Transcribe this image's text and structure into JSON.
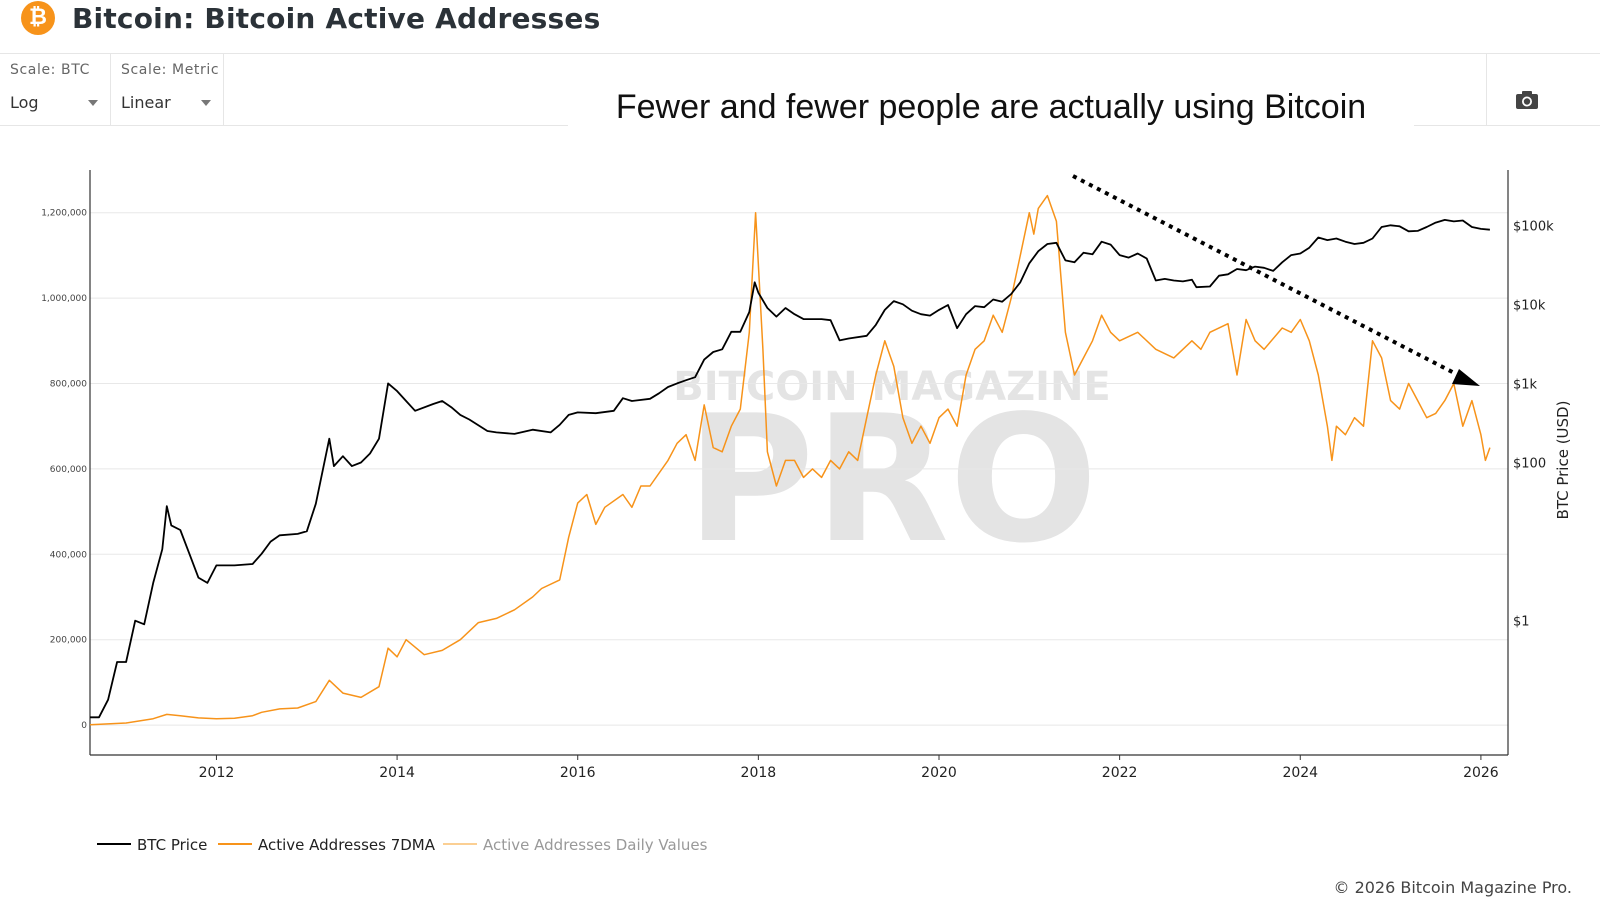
{
  "header": {
    "logo_glyph": "₿",
    "title": "Bitcoin: Bitcoin Active Addresses"
  },
  "controls": {
    "scale_btc_label": "Scale: BTC",
    "scale_btc_value": "Log",
    "scale_metric_label": "Scale: Metric",
    "scale_metric_value": "Linear",
    "screenshot_icon": "camera-icon"
  },
  "annotation": "Fewer and fewer people are actually using Bitcoin",
  "watermark": {
    "top": "BITCOIN MAGAZINE",
    "main": "PRO"
  },
  "copyright": "© 2026 Bitcoin Magazine Pro.",
  "colors": {
    "btc_price": "#000000",
    "active_7dma": "#f7931a",
    "active_daily": "#fbcf93",
    "arrow": "#000000"
  },
  "chart_data": {
    "type": "line",
    "title": "Bitcoin: Bitcoin Active Addresses",
    "x_ticks": [
      "2012",
      "2014",
      "2016",
      "2018",
      "2020",
      "2022",
      "2024",
      "2026"
    ],
    "xlim": [
      2010.6,
      2026.3
    ],
    "y_left": {
      "scale": "linear",
      "lim": [
        -70000,
        1300000
      ],
      "ticks": [
        0,
        200000,
        400000,
        600000,
        800000,
        1000000,
        1200000
      ],
      "tick_labels": [
        "0",
        "200,000",
        "400,000",
        "600,000",
        "800,000",
        "1,000,000",
        "1,200,000"
      ]
    },
    "y_right": {
      "label": "BTC Price (USD)",
      "scale": "log",
      "lim": [
        0.02,
        500000
      ],
      "ticks": [
        1,
        100,
        1000,
        10000,
        100000
      ],
      "tick_labels": [
        "$1",
        "$100",
        "$1k",
        "$10k",
        "$100k"
      ]
    },
    "grid": true,
    "legend_position": "bottom-left",
    "series": [
      {
        "name": "BTC Price",
        "axis": "right",
        "points": [
          [
            2010.6,
            0.06
          ],
          [
            2010.7,
            0.06
          ],
          [
            2010.8,
            0.1
          ],
          [
            2010.9,
            0.3
          ],
          [
            2011.0,
            0.3
          ],
          [
            2011.1,
            1.0
          ],
          [
            2011.2,
            0.9
          ],
          [
            2011.3,
            3
          ],
          [
            2011.4,
            8
          ],
          [
            2011.45,
            28
          ],
          [
            2011.5,
            16
          ],
          [
            2011.6,
            14
          ],
          [
            2011.7,
            7
          ],
          [
            2011.8,
            3.5
          ],
          [
            2011.9,
            3
          ],
          [
            2012.0,
            5
          ],
          [
            2012.1,
            5
          ],
          [
            2012.2,
            5
          ],
          [
            2012.4,
            5.2
          ],
          [
            2012.5,
            7
          ],
          [
            2012.6,
            10
          ],
          [
            2012.7,
            12
          ],
          [
            2012.9,
            12.5
          ],
          [
            2013.0,
            13.5
          ],
          [
            2013.1,
            30
          ],
          [
            2013.25,
            200
          ],
          [
            2013.3,
            90
          ],
          [
            2013.4,
            120
          ],
          [
            2013.5,
            90
          ],
          [
            2013.6,
            100
          ],
          [
            2013.7,
            130
          ],
          [
            2013.8,
            200
          ],
          [
            2013.9,
            1000
          ],
          [
            2014.0,
            800
          ],
          [
            2014.1,
            600
          ],
          [
            2014.2,
            450
          ],
          [
            2014.4,
            550
          ],
          [
            2014.5,
            600
          ],
          [
            2014.6,
            500
          ],
          [
            2014.7,
            400
          ],
          [
            2014.8,
            350
          ],
          [
            2015.0,
            250
          ],
          [
            2015.1,
            240
          ],
          [
            2015.3,
            230
          ],
          [
            2015.5,
            260
          ],
          [
            2015.7,
            240
          ],
          [
            2015.8,
            300
          ],
          [
            2015.9,
            400
          ],
          [
            2016.0,
            430
          ],
          [
            2016.2,
            420
          ],
          [
            2016.4,
            450
          ],
          [
            2016.5,
            650
          ],
          [
            2016.6,
            600
          ],
          [
            2016.8,
            640
          ],
          [
            2016.9,
            750
          ],
          [
            2017.0,
            900
          ],
          [
            2017.1,
            1000
          ],
          [
            2017.2,
            1100
          ],
          [
            2017.3,
            1200
          ],
          [
            2017.4,
            2000
          ],
          [
            2017.5,
            2500
          ],
          [
            2017.6,
            2700
          ],
          [
            2017.7,
            4500
          ],
          [
            2017.8,
            4500
          ],
          [
            2017.9,
            8000
          ],
          [
            2017.96,
            19000
          ],
          [
            2018.0,
            14000
          ],
          [
            2018.1,
            9000
          ],
          [
            2018.2,
            7000
          ],
          [
            2018.3,
            9000
          ],
          [
            2018.4,
            7500
          ],
          [
            2018.5,
            6500
          ],
          [
            2018.6,
            6500
          ],
          [
            2018.7,
            6500
          ],
          [
            2018.8,
            6300
          ],
          [
            2018.9,
            3500
          ],
          [
            2019.0,
            3700
          ],
          [
            2019.2,
            4000
          ],
          [
            2019.3,
            5500
          ],
          [
            2019.4,
            8500
          ],
          [
            2019.5,
            11000
          ],
          [
            2019.6,
            10000
          ],
          [
            2019.7,
            8300
          ],
          [
            2019.8,
            7500
          ],
          [
            2019.9,
            7200
          ],
          [
            2020.0,
            8500
          ],
          [
            2020.1,
            9800
          ],
          [
            2020.2,
            5000
          ],
          [
            2020.3,
            7500
          ],
          [
            2020.4,
            9500
          ],
          [
            2020.5,
            9200
          ],
          [
            2020.6,
            11500
          ],
          [
            2020.7,
            10800
          ],
          [
            2020.8,
            13500
          ],
          [
            2020.9,
            19000
          ],
          [
            2021.0,
            33000
          ],
          [
            2021.1,
            47000
          ],
          [
            2021.2,
            58000
          ],
          [
            2021.3,
            60000
          ],
          [
            2021.4,
            36000
          ],
          [
            2021.5,
            34000
          ],
          [
            2021.6,
            45000
          ],
          [
            2021.7,
            43000
          ],
          [
            2021.8,
            62000
          ],
          [
            2021.9,
            57000
          ],
          [
            2022.0,
            42000
          ],
          [
            2022.1,
            39000
          ],
          [
            2022.2,
            44000
          ],
          [
            2022.3,
            38000
          ],
          [
            2022.4,
            20000
          ],
          [
            2022.5,
            21000
          ],
          [
            2022.6,
            20000
          ],
          [
            2022.7,
            19500
          ],
          [
            2022.8,
            20500
          ],
          [
            2022.85,
            16500
          ],
          [
            2023.0,
            16800
          ],
          [
            2023.1,
            23000
          ],
          [
            2023.2,
            24000
          ],
          [
            2023.3,
            28000
          ],
          [
            2023.4,
            27000
          ],
          [
            2023.5,
            30000
          ],
          [
            2023.6,
            29000
          ],
          [
            2023.7,
            26500
          ],
          [
            2023.8,
            34000
          ],
          [
            2023.9,
            42000
          ],
          [
            2024.0,
            44000
          ],
          [
            2024.1,
            52000
          ],
          [
            2024.2,
            70000
          ],
          [
            2024.3,
            65000
          ],
          [
            2024.4,
            68000
          ],
          [
            2024.5,
            62000
          ],
          [
            2024.6,
            58000
          ],
          [
            2024.7,
            60000
          ],
          [
            2024.8,
            68000
          ],
          [
            2024.9,
            95000
          ],
          [
            2025.0,
            100000
          ],
          [
            2025.1,
            97000
          ],
          [
            2025.2,
            84000
          ],
          [
            2025.3,
            85000
          ],
          [
            2025.4,
            95000
          ],
          [
            2025.5,
            108000
          ],
          [
            2025.6,
            117000
          ],
          [
            2025.7,
            112000
          ],
          [
            2025.8,
            115000
          ],
          [
            2025.9,
            95000
          ],
          [
            2026.0,
            90000
          ],
          [
            2026.1,
            88000
          ]
        ]
      },
      {
        "name": "Active Addresses 7DMA",
        "axis": "left",
        "points": [
          [
            2010.6,
            1000
          ],
          [
            2011.0,
            5000
          ],
          [
            2011.3,
            15000
          ],
          [
            2011.45,
            25000
          ],
          [
            2011.6,
            22000
          ],
          [
            2011.8,
            17000
          ],
          [
            2012.0,
            15000
          ],
          [
            2012.2,
            16000
          ],
          [
            2012.4,
            22000
          ],
          [
            2012.5,
            30000
          ],
          [
            2012.7,
            38000
          ],
          [
            2012.9,
            40000
          ],
          [
            2013.1,
            55000
          ],
          [
            2013.25,
            105000
          ],
          [
            2013.4,
            75000
          ],
          [
            2013.6,
            65000
          ],
          [
            2013.8,
            90000
          ],
          [
            2013.9,
            180000
          ],
          [
            2014.0,
            160000
          ],
          [
            2014.1,
            200000
          ],
          [
            2014.3,
            165000
          ],
          [
            2014.5,
            175000
          ],
          [
            2014.7,
            200000
          ],
          [
            2014.9,
            240000
          ],
          [
            2015.1,
            250000
          ],
          [
            2015.3,
            270000
          ],
          [
            2015.5,
            300000
          ],
          [
            2015.6,
            320000
          ],
          [
            2015.8,
            340000
          ],
          [
            2015.9,
            440000
          ],
          [
            2016.0,
            520000
          ],
          [
            2016.1,
            540000
          ],
          [
            2016.2,
            470000
          ],
          [
            2016.3,
            510000
          ],
          [
            2016.5,
            540000
          ],
          [
            2016.6,
            510000
          ],
          [
            2016.7,
            560000
          ],
          [
            2016.8,
            560000
          ],
          [
            2017.0,
            620000
          ],
          [
            2017.1,
            660000
          ],
          [
            2017.2,
            680000
          ],
          [
            2017.3,
            620000
          ],
          [
            2017.4,
            750000
          ],
          [
            2017.5,
            650000
          ],
          [
            2017.6,
            640000
          ],
          [
            2017.7,
            700000
          ],
          [
            2017.8,
            740000
          ],
          [
            2017.9,
            920000
          ],
          [
            2017.97,
            1200000
          ],
          [
            2018.05,
            880000
          ],
          [
            2018.1,
            640000
          ],
          [
            2018.2,
            560000
          ],
          [
            2018.3,
            620000
          ],
          [
            2018.4,
            620000
          ],
          [
            2018.5,
            580000
          ],
          [
            2018.6,
            600000
          ],
          [
            2018.7,
            580000
          ],
          [
            2018.8,
            620000
          ],
          [
            2018.9,
            600000
          ],
          [
            2019.0,
            640000
          ],
          [
            2019.1,
            620000
          ],
          [
            2019.2,
            720000
          ],
          [
            2019.3,
            820000
          ],
          [
            2019.4,
            900000
          ],
          [
            2019.5,
            840000
          ],
          [
            2019.6,
            720000
          ],
          [
            2019.7,
            660000
          ],
          [
            2019.8,
            700000
          ],
          [
            2019.9,
            660000
          ],
          [
            2020.0,
            720000
          ],
          [
            2020.1,
            740000
          ],
          [
            2020.2,
            700000
          ],
          [
            2020.3,
            820000
          ],
          [
            2020.4,
            880000
          ],
          [
            2020.5,
            900000
          ],
          [
            2020.6,
            960000
          ],
          [
            2020.7,
            920000
          ],
          [
            2020.8,
            1000000
          ],
          [
            2020.9,
            1100000
          ],
          [
            2021.0,
            1200000
          ],
          [
            2021.05,
            1150000
          ],
          [
            2021.1,
            1210000
          ],
          [
            2021.2,
            1240000
          ],
          [
            2021.3,
            1180000
          ],
          [
            2021.4,
            920000
          ],
          [
            2021.5,
            820000
          ],
          [
            2021.6,
            860000
          ],
          [
            2021.7,
            900000
          ],
          [
            2021.8,
            960000
          ],
          [
            2021.9,
            920000
          ],
          [
            2022.0,
            900000
          ],
          [
            2022.2,
            920000
          ],
          [
            2022.4,
            880000
          ],
          [
            2022.6,
            860000
          ],
          [
            2022.8,
            900000
          ],
          [
            2022.9,
            880000
          ],
          [
            2023.0,
            920000
          ],
          [
            2023.2,
            940000
          ],
          [
            2023.3,
            820000
          ],
          [
            2023.4,
            950000
          ],
          [
            2023.5,
            900000
          ],
          [
            2023.6,
            880000
          ],
          [
            2023.8,
            930000
          ],
          [
            2023.9,
            920000
          ],
          [
            2024.0,
            950000
          ],
          [
            2024.1,
            900000
          ],
          [
            2024.2,
            820000
          ],
          [
            2024.3,
            700000
          ],
          [
            2024.35,
            620000
          ],
          [
            2024.4,
            700000
          ],
          [
            2024.5,
            680000
          ],
          [
            2024.6,
            720000
          ],
          [
            2024.7,
            700000
          ],
          [
            2024.8,
            900000
          ],
          [
            2024.9,
            860000
          ],
          [
            2025.0,
            760000
          ],
          [
            2025.1,
            740000
          ],
          [
            2025.2,
            800000
          ],
          [
            2025.3,
            760000
          ],
          [
            2025.4,
            720000
          ],
          [
            2025.5,
            730000
          ],
          [
            2025.6,
            760000
          ],
          [
            2025.7,
            800000
          ],
          [
            2025.8,
            700000
          ],
          [
            2025.9,
            760000
          ],
          [
            2026.0,
            680000
          ],
          [
            2026.05,
            620000
          ],
          [
            2026.1,
            650000
          ]
        ]
      },
      {
        "name": "Active Addresses Daily Values",
        "axis": "left",
        "visible": false,
        "points": []
      }
    ],
    "annotations": [
      {
        "type": "arrow",
        "label": "Fewer and fewer people are actually using Bitcoin",
        "direction": "down-right"
      }
    ]
  }
}
